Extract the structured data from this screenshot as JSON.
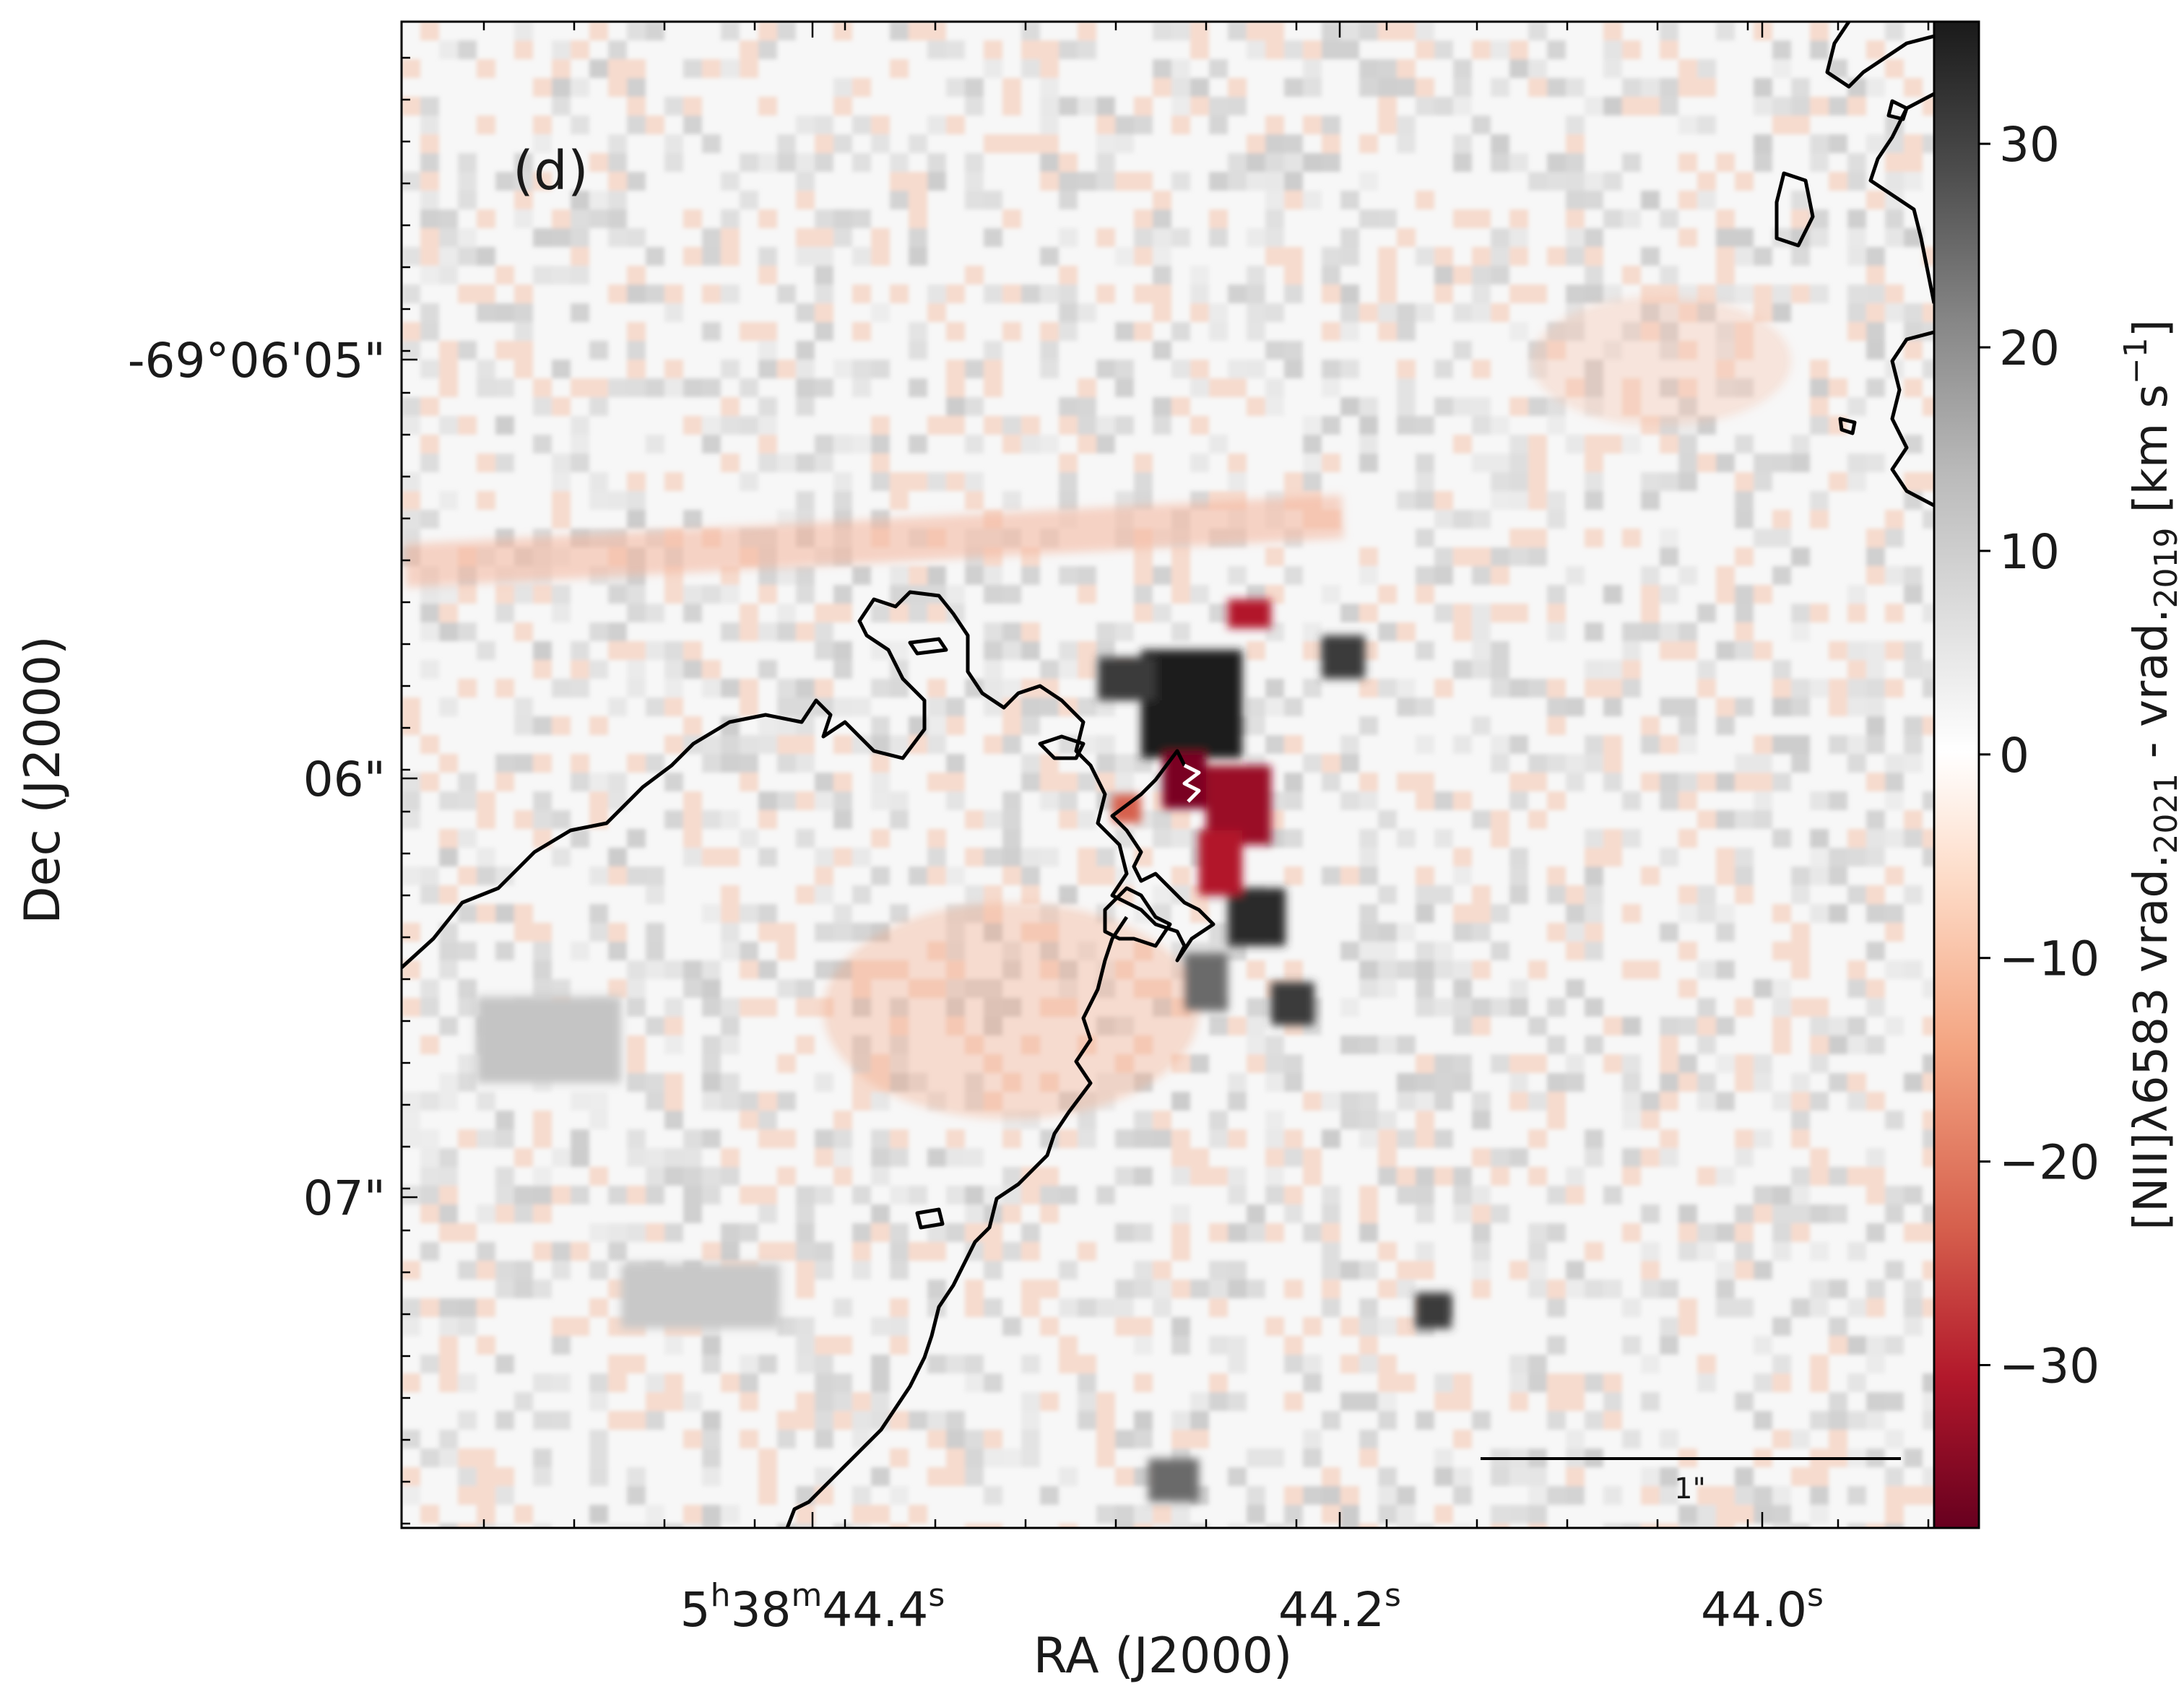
{
  "panel_label": "(d)",
  "scale_bar_label": "1\"",
  "xlabel": "RA (J2000)",
  "ylabel": "Dec (J2000)",
  "colorbar": {
    "label_parts": {
      "a": "[NII]λ6583 vrad.",
      "b": "2021",
      "c": " - vrad.",
      "d": "2019",
      "e": " [km s",
      "f": "−1",
      "g": "]"
    },
    "range": [
      -38,
      36
    ],
    "ticks": [
      {
        "value": 30,
        "label": "30"
      },
      {
        "value": 20,
        "label": "20"
      },
      {
        "value": 10,
        "label": "10"
      },
      {
        "value": 0,
        "label": "0"
      },
      {
        "value": -10,
        "label": "−10"
      },
      {
        "value": -20,
        "label": "−20"
      },
      {
        "value": -30,
        "label": "−30"
      }
    ],
    "colormap": [
      "#67001f",
      "#b2182b",
      "#d6604d",
      "#f4a582",
      "#fddbc7",
      "#ffffff",
      "#e0e0e0",
      "#bababa",
      "#878787",
      "#4d4d4d",
      "#1a1a1a"
    ]
  },
  "x_ticks": [
    {
      "pre": "5",
      "s1": "h",
      "m1": "38",
      "s2": "m",
      "m2": "44.4",
      "s3": "s"
    },
    {
      "pre": "",
      "s1": "",
      "m1": "",
      "s2": "",
      "m2": "44.2",
      "s3": "s"
    },
    {
      "pre": "",
      "s1": "",
      "m1": "",
      "s2": "",
      "m2": "44.0",
      "s3": "s"
    }
  ],
  "y_ticks": [
    {
      "label": "-69°06'05\""
    },
    {
      "label": "06\""
    },
    {
      "label": "07\""
    }
  ],
  "chart_data": {
    "type": "heatmap",
    "title": "",
    "xlabel": "RA (J2000)",
    "ylabel": "Dec (J2000)",
    "x_tick_labels": [
      "5h38m44.4s",
      "44.2s",
      "44.0s"
    ],
    "y_tick_labels": [
      "-69°06'05\"",
      "06\"",
      "07\""
    ],
    "value_label": "[NII]λ6583 vrad.2021 - vrad.2019 [km s−1]",
    "value_range": [
      -38,
      36
    ],
    "colorbar_ticks": [
      -30,
      -20,
      -10,
      0,
      10,
      20,
      30
    ],
    "colormap": "RdGy (red = negative, grey/black = positive)",
    "features": [
      {
        "description": "strong negative (red) velocity difference core near center",
        "approx_value": -35
      },
      {
        "description": "strong positive (black) clump just north of center",
        "approx_value": 35
      },
      {
        "description": "background mostly near zero with light grey/salmon speckle",
        "approx_value": 0
      }
    ],
    "contours": "black outlines tracing a nebular boundary from lower-left to upper-center and along right edge",
    "scale_bar": "1\"",
    "grid": false
  }
}
